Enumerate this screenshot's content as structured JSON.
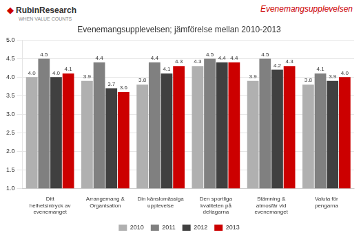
{
  "chart_data": {
    "type": "bar",
    "title": "Evenemangsupplevelsen; jämförelse mellan 2010-2013",
    "annotations": [
      "◆",
      "RubinResearch",
      "WHEN VALUE COUNTS",
      "Evenemangsupplevelsen"
    ],
    "categories": [
      "Ditt helhetsintryck av\nevenemanget",
      "Arrangemang &\nOrganisation",
      "Din känslomässiga\nupplevelse",
      "Den sportliga kvaliteten på\ndeltagarna",
      "Stämning & atmosfär vid\nevenemanget",
      "Valuta för pengarna"
    ],
    "series": [
      {
        "name": "2010",
        "color": "#b0b0b0",
        "values": [
          4.0,
          3.9,
          3.8,
          4.3,
          3.9,
          3.8
        ],
        "value_labels": [
          "4.0",
          "3.9",
          "3.8",
          "4.3",
          "3.9",
          "3.8"
        ]
      },
      {
        "name": "2011",
        "color": "#808080",
        "values": [
          4.5,
          4.4,
          4.4,
          4.5,
          4.5,
          4.1
        ],
        "value_labels": [
          "4.5",
          "4.4",
          "4.4",
          "4.5",
          "4.5",
          "4.1"
        ]
      },
      {
        "name": "2012",
        "color": "#404040",
        "values": [
          4.0,
          3.7,
          4.1,
          4.4,
          4.2,
          3.9
        ],
        "value_labels": [
          "4.0",
          "3.7",
          "4.1",
          "4.4",
          "4.2",
          "3.9"
        ]
      },
      {
        "name": "2013",
        "color": "#cc0000",
        "values": [
          4.1,
          3.6,
          4.3,
          4.4,
          4.3,
          4.0
        ],
        "value_labels": [
          "4.1",
          "3.6",
          "4.3",
          "4.4",
          "4.3",
          "4.0"
        ]
      }
    ],
    "ylim": [
      1.0,
      5.0
    ],
    "yticks": [
      {
        "value": 1,
        "label": "1.0"
      },
      1.5,
      {
        "value": 2,
        "label": "2.0"
      },
      2.5,
      {
        "value": 3,
        "label": "3.0"
      },
      3.5,
      {
        "value": 4,
        "label": "4.0"
      },
      4.5,
      {
        "value": 5,
        "label": "5.0"
      }
    ],
    "grid": true,
    "legend": "bottom",
    "data_labels": true
  }
}
